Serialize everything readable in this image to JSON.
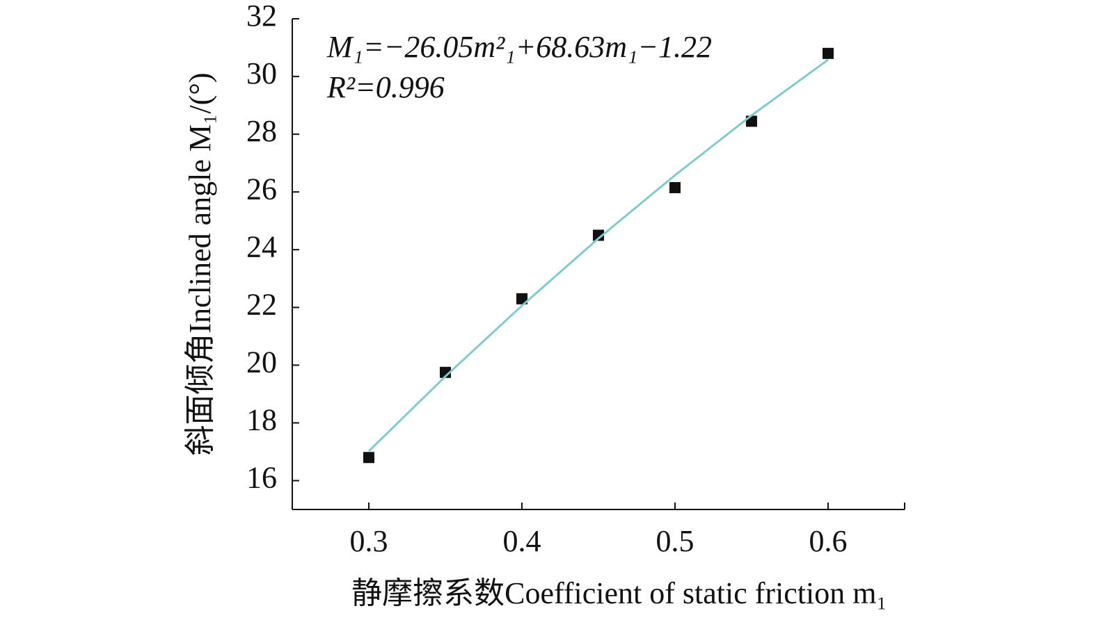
{
  "chart_data": {
    "type": "scatter",
    "x_label": "静摩擦系数Coefficient of static friction m₁",
    "y_label": "斜面倾角Inclined angle M₁/(°)",
    "annotations": [
      "M₁=−26.05m²₁+68.63m₁−1.22",
      "R²=0.996"
    ],
    "series": [
      {
        "name": "measured",
        "color": "#111111",
        "kind": "marker",
        "x": [
          0.3,
          0.35,
          0.4,
          0.45,
          0.5,
          0.55,
          0.6
        ],
        "values": [
          16.8,
          19.75,
          22.3,
          24.5,
          26.15,
          28.45,
          30.8
        ]
      },
      {
        "name": "fit",
        "color": "#7ecbd0",
        "kind": "line",
        "x": [
          0.3,
          0.35,
          0.4,
          0.45,
          0.5,
          0.55,
          0.6
        ],
        "values": [
          17.02,
          19.61,
          22.06,
          24.39,
          26.58,
          28.65,
          30.58
        ]
      }
    ],
    "xlim": [
      0.25,
      0.65
    ],
    "xticks": [
      0.3,
      0.4,
      0.5,
      0.6
    ],
    "ylim": [
      15,
      32
    ],
    "yticks": [
      16,
      18,
      20,
      22,
      24,
      26,
      28,
      30,
      32
    ]
  }
}
